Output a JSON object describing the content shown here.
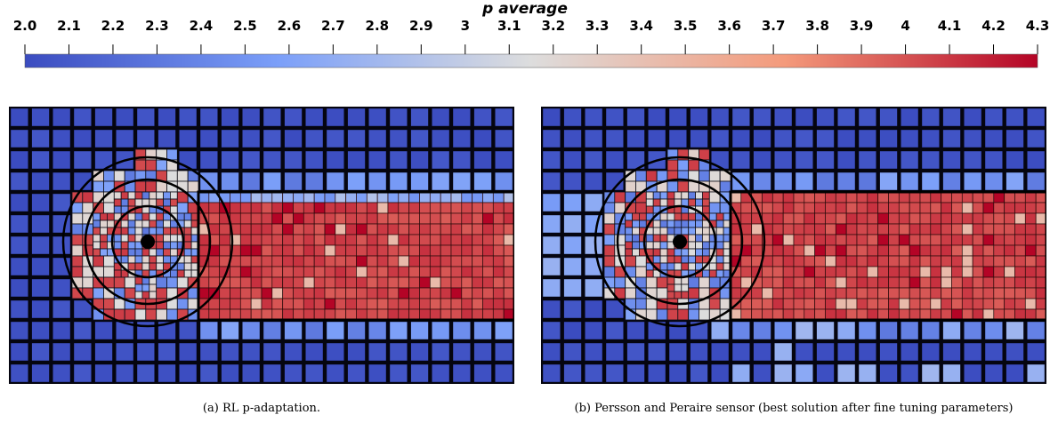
{
  "colorbar": {
    "title": "p average",
    "min": 2.0,
    "max": 4.3,
    "tick_labels": [
      "2.0",
      "2.1",
      "2.2",
      "2.3",
      "2.4",
      "2.5",
      "2.6",
      "2.7",
      "2.8",
      "2.9",
      "3",
      "3.1",
      "3.2",
      "3.3",
      "3.4",
      "3.5",
      "3.6",
      "3.7",
      "3.8",
      "3.9",
      "4",
      "4.1",
      "4.2",
      "4.3"
    ],
    "colormap": "cool-to-warm",
    "colors": {
      "low": "#3b4cc0",
      "mid": "#dddddd",
      "high": "#b40426"
    }
  },
  "panels": [
    {
      "caption": "(a) RL p-adaptation."
    },
    {
      "caption": "(b) Persson and Peraire sensor (best solution after fine tuning parameters)"
    }
  ]
}
